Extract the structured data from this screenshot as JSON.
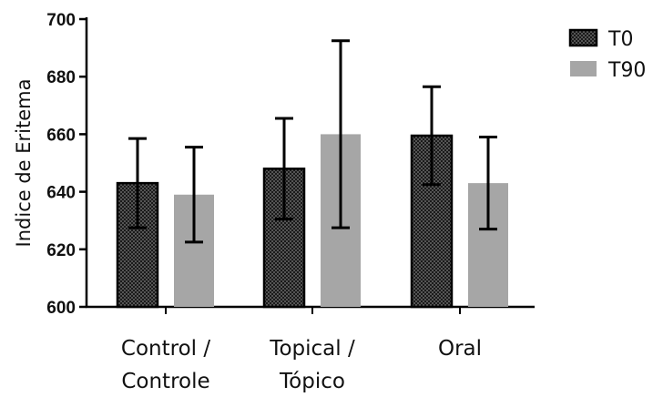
{
  "chart_data": {
    "type": "bar",
    "title": "",
    "xlabel": "",
    "ylabel": "Indice de Eritema",
    "ylim": [
      600,
      700
    ],
    "yticks": [
      600,
      620,
      640,
      660,
      680,
      700
    ],
    "categories": [
      [
        "Control /",
        "Controle"
      ],
      [
        "Topical /",
        "Tópico"
      ],
      [
        "Oral"
      ]
    ],
    "series": [
      {
        "name": "T0",
        "values": [
          643,
          648,
          659.5
        ],
        "error": [
          15.5,
          17.5,
          17
        ],
        "pattern": "crosshatch-dark",
        "color": "#2a2a2a"
      },
      {
        "name": "T90",
        "values": [
          639,
          660,
          643
        ],
        "error": [
          16.5,
          32.5,
          16
        ],
        "pattern": "solid",
        "color": "#a6a6a6"
      }
    ],
    "legend_position": "top-right",
    "grid": false
  }
}
